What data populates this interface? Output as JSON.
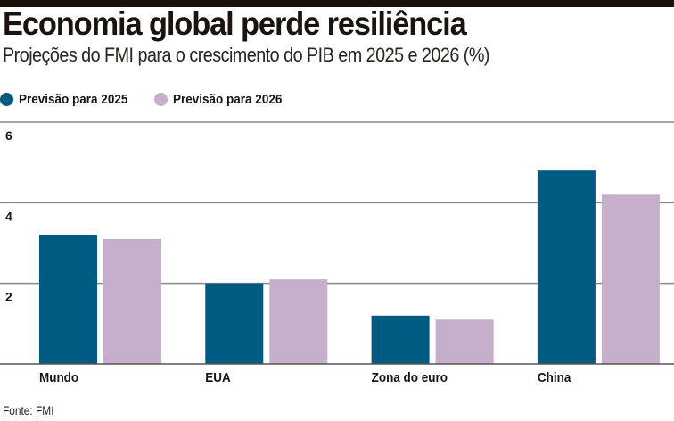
{
  "header": {
    "title": "Economia global perde resiliência",
    "subtitle": "Projeções do FMI para o crescimento do PIB em 2025 e 2026 (%)"
  },
  "source": "Fonte: FMI",
  "colors": {
    "series_2025": "#005b82",
    "series_2026": "#c6afcb",
    "gridline": "#888888",
    "baseline": "#555555"
  },
  "chart_data": {
    "type": "bar",
    "title": "Economia global perde resiliência",
    "subtitle": "Projeções do FMI para o crescimento do PIB em 2025 e 2026 (%)",
    "xlabel": "",
    "ylabel": "",
    "categories": [
      "Mundo",
      "EUA",
      "Zona do euro",
      "China"
    ],
    "series": [
      {
        "name": "Previsão para 2025",
        "values": [
          3.2,
          2.0,
          1.2,
          4.8
        ]
      },
      {
        "name": "Previsão para 2026",
        "values": [
          3.1,
          2.1,
          1.1,
          4.2
        ]
      }
    ],
    "ylim": [
      0,
      6
    ],
    "yticks": [
      "2",
      "4",
      "6"
    ],
    "ytick_values": [
      2,
      4,
      6
    ],
    "grid": true,
    "legend_position": "top-left"
  }
}
